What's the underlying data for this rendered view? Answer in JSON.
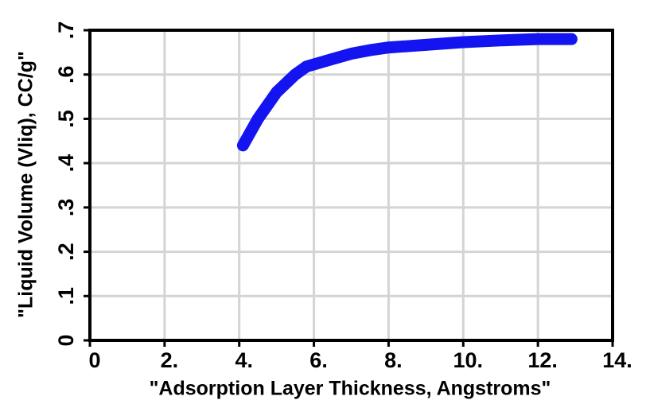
{
  "chart_data": {
    "type": "line",
    "x_label": "\"Adsorption Layer Thickness, Angstroms\"",
    "y_label": "\"Liquid Volume (Vliq), CC/g\"",
    "xlim": [
      0,
      14
    ],
    "xticks": [
      0,
      {
        "value": 2,
        "label": "2."
      },
      {
        "value": 4,
        "label": "4."
      },
      {
        "value": 6,
        "label": "6."
      },
      {
        "value": 8,
        "label": "8."
      },
      {
        "value": 10,
        "label": "10."
      },
      {
        "value": 12,
        "label": "12."
      },
      {
        "value": 14,
        "label": "14."
      }
    ],
    "ylim": [
      0,
      0.7
    ],
    "yticks": [
      0,
      {
        "value": 0.1,
        "label": ".1"
      },
      {
        "value": 0.2,
        "label": ".2"
      },
      {
        "value": 0.3,
        "label": ".3"
      },
      {
        "value": 0.4,
        "label": ".4"
      },
      {
        "value": 0.5,
        "label": ".5"
      },
      {
        "value": 0.6,
        "label": ".6"
      },
      {
        "value": 0.7,
        "label": ".7"
      }
    ],
    "grid": true,
    "series": [
      {
        "color": "#1414f0",
        "x": [
          4.1,
          4.5,
          5.0,
          5.5,
          5.8,
          6.5,
          7.0,
          7.5,
          8.0,
          9.0,
          10.0,
          11.0,
          12.0,
          12.9
        ],
        "values": [
          0.44,
          0.5,
          0.56,
          0.6,
          0.618,
          0.635,
          0.647,
          0.655,
          0.661,
          0.667,
          0.673,
          0.677,
          0.68,
          0.68
        ]
      }
    ]
  }
}
